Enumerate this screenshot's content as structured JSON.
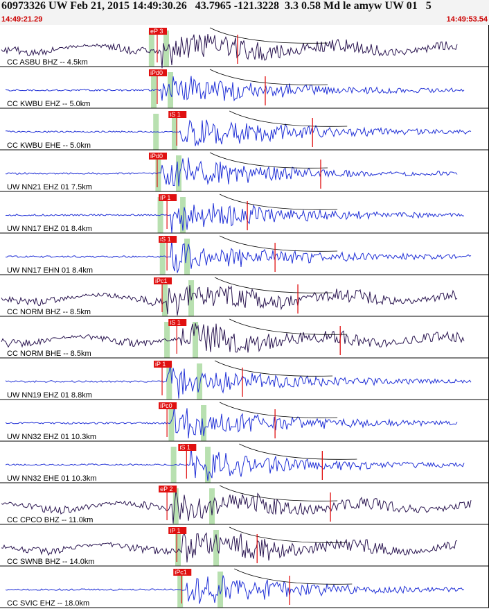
{
  "header": {
    "title": "60973326 UW Feb 21, 2015 14:49:30.26   43.7965 -121.3228  3.3 0.58 Md le amyw UW 01   5",
    "time_start": "14:49:21.29",
    "time_end": "14:49:53.54"
  },
  "colors": {
    "trace_blue": "#1f2fd6",
    "trace_dark": "#2a1550",
    "pick": "#e01010",
    "pick_window": "#b8e0b0",
    "frame": "#000000"
  },
  "traces": [
    {
      "label": "CC ASBU BHZ -- 4.5km",
      "pick": "eP 3",
      "color": "dark",
      "onset": 0.33
    },
    {
      "label": "CC KWBU EHZ -- 5.0km",
      "pick": "iPd0",
      "color": "blue",
      "onset": 0.33
    },
    {
      "label": "CC KWBU EHE -- 5.0km",
      "pick": "iS 1",
      "color": "blue",
      "onset": 0.37
    },
    {
      "label": "UW NN21 EHZ 01 7.5km",
      "pick": "iPd0",
      "color": "blue",
      "onset": 0.33
    },
    {
      "label": "UW NN17 EHZ 01 8.4km",
      "pick": "iP 1",
      "color": "blue",
      "onset": 0.35
    },
    {
      "label": "UW NN17 EHN 01 8.4km",
      "pick": "iS 1",
      "color": "blue",
      "onset": 0.35
    },
    {
      "label": "CC NORM BHZ -- 8.5km",
      "pick": "iPc1",
      "color": "dark",
      "onset": 0.34
    },
    {
      "label": "CC NORM BHE -- 8.5km",
      "pick": "iS 1",
      "color": "dark",
      "onset": 0.37
    },
    {
      "label": "UW NN19 EHZ 01 8.8km",
      "pick": "iP 1",
      "color": "blue",
      "onset": 0.34
    },
    {
      "label": "UW NN32 EHZ 01 10.3km",
      "pick": "iPc0",
      "color": "blue",
      "onset": 0.35
    },
    {
      "label": "UW NN32 EHE 01 10.3km",
      "pick": "iS 1",
      "color": "blue",
      "onset": 0.39
    },
    {
      "label": "CC CPCO BHZ -- 11.0km",
      "pick": "eP 2",
      "color": "dark",
      "onset": 0.35
    },
    {
      "label": "CC SWNB BHZ -- 14.0km",
      "pick": "iP 1",
      "color": "dark",
      "onset": 0.37
    },
    {
      "label": "CC SVIC EHZ -- 18.0km",
      "pick": "iPc1",
      "color": "blue",
      "onset": 0.38
    }
  ]
}
